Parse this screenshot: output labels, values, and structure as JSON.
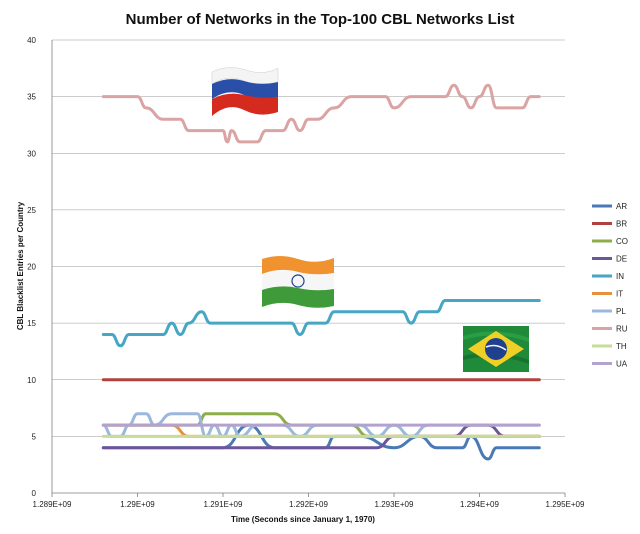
{
  "chart_data": {
    "type": "line",
    "title": "Number of Networks in the Top-100 CBL Networks List",
    "xlabel": "Time (Seconds since January 1, 1970)",
    "ylabel": "CBL Blacklist Entries per Country",
    "xlim": [
      1289000000,
      1295000000
    ],
    "ylim": [
      0,
      40
    ],
    "x_ticks": [
      "1.289E+09",
      "1.29E+09",
      "1.291E+09",
      "1.292E+09",
      "1.293E+09",
      "1.294E+09",
      "1.295E+09"
    ],
    "y_ticks": [
      "0",
      "5",
      "10",
      "15",
      "20",
      "25",
      "30",
      "35",
      "40"
    ],
    "grid": "horizontal",
    "legend_position": "right",
    "flag_images": [
      "russia-flag",
      "india-flag",
      "brazil-flag"
    ],
    "series": [
      {
        "name": "AR",
        "color": "#4a7ab5",
        "points": [
          [
            1289600000,
            4
          ],
          [
            1290000000,
            4
          ],
          [
            1290600000,
            4
          ],
          [
            1291000000,
            4
          ],
          [
            1291300000,
            6
          ],
          [
            1291600000,
            4
          ],
          [
            1292000000,
            4
          ],
          [
            1292200000,
            4
          ],
          [
            1292300000,
            5
          ],
          [
            1292600000,
            5
          ],
          [
            1293000000,
            4
          ],
          [
            1293300000,
            5
          ],
          [
            1293500000,
            4
          ],
          [
            1293800000,
            4
          ],
          [
            1293900000,
            5
          ],
          [
            1294100000,
            3
          ],
          [
            1294200000,
            4
          ],
          [
            1294700000,
            4
          ]
        ]
      },
      {
        "name": "BR",
        "color": "#b0413e",
        "points": [
          [
            1289600000,
            10
          ],
          [
            1294700000,
            10
          ]
        ]
      },
      {
        "name": "CO",
        "color": "#8cad4a",
        "points": [
          [
            1289600000,
            6
          ],
          [
            1290700000,
            6
          ],
          [
            1290800000,
            7
          ],
          [
            1291600000,
            7
          ],
          [
            1291800000,
            6
          ],
          [
            1292500000,
            6
          ],
          [
            1292700000,
            5
          ],
          [
            1294700000,
            5
          ]
        ]
      },
      {
        "name": "DE",
        "color": "#6e559a",
        "points": [
          [
            1289600000,
            4
          ],
          [
            1292800000,
            4
          ],
          [
            1293000000,
            5
          ],
          [
            1293700000,
            5
          ],
          [
            1293900000,
            6
          ],
          [
            1294100000,
            6
          ],
          [
            1294300000,
            5
          ],
          [
            1294700000,
            5
          ]
        ]
      },
      {
        "name": "IN",
        "color": "#46a6c4",
        "points": [
          [
            1289600000,
            14
          ],
          [
            1289700000,
            14
          ],
          [
            1289800000,
            13
          ],
          [
            1289900000,
            14
          ],
          [
            1290300000,
            14
          ],
          [
            1290400000,
            15
          ],
          [
            1290500000,
            14
          ],
          [
            1290600000,
            15
          ],
          [
            1290750000,
            16
          ],
          [
            1290850000,
            15
          ],
          [
            1291700000,
            15
          ],
          [
            1291800000,
            15
          ],
          [
            1291900000,
            14
          ],
          [
            1292000000,
            15
          ],
          [
            1292200000,
            15
          ],
          [
            1292300000,
            16
          ],
          [
            1293100000,
            16
          ],
          [
            1293200000,
            15
          ],
          [
            1293300000,
            16
          ],
          [
            1293500000,
            16
          ],
          [
            1293600000,
            17
          ],
          [
            1294700000,
            17
          ]
        ]
      },
      {
        "name": "IT",
        "color": "#e8913a",
        "points": [
          [
            1289600000,
            6
          ],
          [
            1290000000,
            6
          ],
          [
            1290100000,
            6
          ],
          [
            1290400000,
            6
          ],
          [
            1290600000,
            5
          ],
          [
            1294700000,
            5
          ]
        ]
      },
      {
        "name": "PL",
        "color": "#9bb7dc",
        "points": [
          [
            1289600000,
            6
          ],
          [
            1289700000,
            5
          ],
          [
            1289800000,
            5
          ],
          [
            1289900000,
            6
          ],
          [
            1290000000,
            7
          ],
          [
            1290100000,
            7
          ],
          [
            1290200000,
            6
          ],
          [
            1290400000,
            7
          ],
          [
            1290700000,
            7
          ],
          [
            1290800000,
            5
          ],
          [
            1290900000,
            6
          ],
          [
            1291000000,
            5
          ],
          [
            1291100000,
            6
          ],
          [
            1291200000,
            5
          ],
          [
            1291400000,
            6
          ],
          [
            1291700000,
            6
          ],
          [
            1291900000,
            5
          ],
          [
            1292100000,
            6
          ],
          [
            1292400000,
            6
          ],
          [
            1292600000,
            6
          ],
          [
            1292800000,
            5
          ],
          [
            1293000000,
            6
          ],
          [
            1293200000,
            5
          ],
          [
            1293400000,
            6
          ],
          [
            1294700000,
            6
          ]
        ]
      },
      {
        "name": "RU",
        "color": "#d9a4a3",
        "points": [
          [
            1289600000,
            35
          ],
          [
            1290000000,
            35
          ],
          [
            1290100000,
            34
          ],
          [
            1290300000,
            33
          ],
          [
            1290500000,
            33
          ],
          [
            1290600000,
            32
          ],
          [
            1291000000,
            32
          ],
          [
            1291050000,
            31
          ],
          [
            1291100000,
            32
          ],
          [
            1291200000,
            31
          ],
          [
            1291400000,
            31
          ],
          [
            1291500000,
            32
          ],
          [
            1291700000,
            32
          ],
          [
            1291800000,
            33
          ],
          [
            1291900000,
            32
          ],
          [
            1292000000,
            33
          ],
          [
            1292100000,
            33
          ],
          [
            1292300000,
            34
          ],
          [
            1292500000,
            35
          ],
          [
            1292900000,
            35
          ],
          [
            1293000000,
            34
          ],
          [
            1293200000,
            35
          ],
          [
            1293600000,
            35
          ],
          [
            1293700000,
            36
          ],
          [
            1293800000,
            35
          ],
          [
            1293900000,
            34
          ],
          [
            1294000000,
            35
          ],
          [
            1294100000,
            36
          ],
          [
            1294200000,
            34
          ],
          [
            1294500000,
            34
          ],
          [
            1294600000,
            35
          ],
          [
            1294700000,
            35
          ]
        ]
      },
      {
        "name": "TH",
        "color": "#c7dc98",
        "points": [
          [
            1289600000,
            5
          ],
          [
            1294700000,
            5
          ]
        ]
      },
      {
        "name": "UA",
        "color": "#b3a2cd",
        "points": [
          [
            1289600000,
            6
          ],
          [
            1294700000,
            6
          ]
        ]
      }
    ]
  }
}
